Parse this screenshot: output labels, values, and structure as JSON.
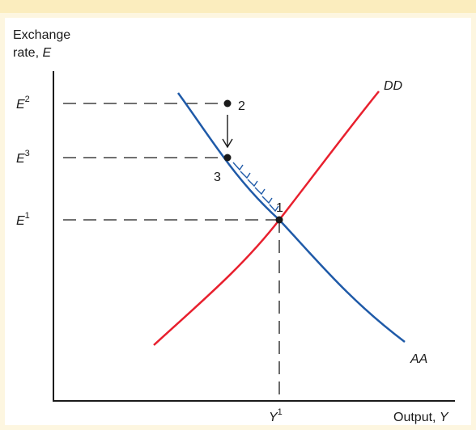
{
  "y_axis_label": {
    "line1": "Exchange",
    "line2_prefix": "rate, ",
    "line2_var": "E"
  },
  "x_axis_label": {
    "prefix": "Output, ",
    "var": "Y"
  },
  "ticks": {
    "e2": {
      "base": "E",
      "sup": "2"
    },
    "e3": {
      "base": "E",
      "sup": "3"
    },
    "e1": {
      "base": "E",
      "sup": "1"
    },
    "y1": {
      "base": "Y",
      "sup": "1"
    }
  },
  "curves": {
    "dd": "DD",
    "aa": "AA"
  },
  "points": {
    "p1": "1",
    "p2": "2",
    "p3": "3"
  },
  "colors": {
    "dd_curve": "#e8202e",
    "aa_curve": "#1f5aa8",
    "background": "#fdf6e0",
    "panel": "#ffffff",
    "ink": "#1a1a1a"
  }
}
